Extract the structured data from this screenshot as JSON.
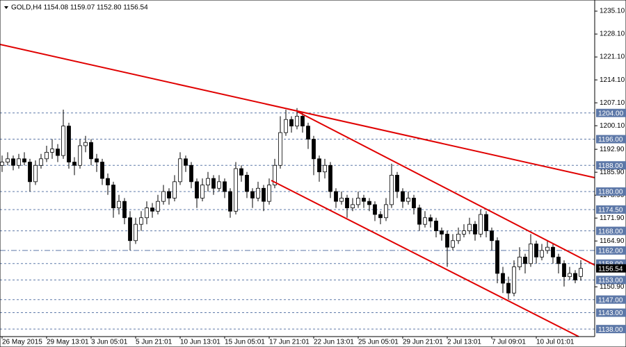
{
  "chart_data": {
    "type": "candlestick",
    "title": "GOLD,H4  1154.08 1159.07 1152.80 1156.54",
    "categories": [
      "26 May 2015",
      null,
      null,
      null,
      null,
      null,
      null,
      null,
      "29 May 13:01",
      null,
      null,
      null,
      null,
      null,
      null,
      null,
      "3 Jun 05:01",
      null,
      null,
      null,
      null,
      null,
      null,
      null,
      "5 Jun 21:01",
      null,
      null,
      null,
      null,
      null,
      null,
      null,
      "10 Jun 13:01",
      null,
      null,
      null,
      null,
      null,
      null,
      null,
      "15 Jun 05:01",
      null,
      null,
      null,
      null,
      null,
      null,
      null,
      "17 Jun 21:01",
      null,
      null,
      null,
      null,
      null,
      null,
      null,
      "22 Jun 13:01",
      null,
      null,
      null,
      null,
      null,
      null,
      null,
      "25 Jun 05:01",
      null,
      null,
      null,
      null,
      null,
      null,
      null,
      "29 Jun 21:01",
      null,
      null,
      null,
      null,
      null,
      null,
      null,
      "2 Jul 13:01",
      null,
      null,
      null,
      null,
      null,
      null,
      null,
      "7 Jul 09:01",
      null,
      null,
      null,
      null,
      null,
      null,
      null,
      "10 Jul 01:01",
      null,
      null,
      null,
      null,
      null,
      null,
      null,
      null
    ],
    "candles": [
      [
        1188,
        1191,
        1186,
        1189
      ],
      [
        1189,
        1192,
        1188,
        1190
      ],
      [
        1190,
        1191,
        1186.5,
        1188
      ],
      [
        1188,
        1191.5,
        1187,
        1190
      ],
      [
        1190,
        1192,
        1188,
        1189
      ],
      [
        1189,
        1190,
        1180,
        1183
      ],
      [
        1183,
        1189.5,
        1182,
        1188
      ],
      [
        1188,
        1191.5,
        1187,
        1190
      ],
      [
        1190,
        1194,
        1189,
        1192
      ],
      [
        1192,
        1196,
        1190,
        1193
      ],
      [
        1193,
        1194.5,
        1189,
        1191
      ],
      [
        1191,
        1205,
        1190,
        1200
      ],
      [
        1200,
        1201,
        1187,
        1189
      ],
      [
        1189,
        1190.5,
        1185,
        1188
      ],
      [
        1188,
        1196,
        1187,
        1194
      ],
      [
        1194,
        1197,
        1192,
        1195
      ],
      [
        1195,
        1196,
        1188,
        1190
      ],
      [
        1190,
        1191.5,
        1186,
        1189
      ],
      [
        1189,
        1190,
        1182,
        1184
      ],
      [
        1184,
        1185.5,
        1179,
        1182
      ],
      [
        1182,
        1183,
        1172,
        1175
      ],
      [
        1175,
        1179,
        1173,
        1177
      ],
      [
        1177,
        1178,
        1170,
        1172
      ],
      [
        1172,
        1174,
        1162,
        1165
      ],
      [
        1165,
        1172,
        1164,
        1170
      ],
      [
        1170,
        1174,
        1168,
        1172
      ],
      [
        1172,
        1177,
        1170,
        1175
      ],
      [
        1175,
        1176.5,
        1172,
        1174
      ],
      [
        1174,
        1179,
        1173,
        1177
      ],
      [
        1177,
        1182,
        1176,
        1180
      ],
      [
        1180,
        1181,
        1176,
        1178
      ],
      [
        1178,
        1185,
        1177,
        1183
      ],
      [
        1183,
        1192,
        1182,
        1190
      ],
      [
        1190,
        1191,
        1186,
        1188
      ],
      [
        1188,
        1189,
        1181,
        1183
      ],
      [
        1183,
        1184,
        1175,
        1178
      ],
      [
        1178,
        1184,
        1177,
        1182
      ],
      [
        1182,
        1186,
        1180,
        1184
      ],
      [
        1184,
        1185,
        1179,
        1181
      ],
      [
        1181,
        1185,
        1180,
        1183
      ],
      [
        1183,
        1184,
        1178,
        1180
      ],
      [
        1180,
        1181,
        1172,
        1174
      ],
      [
        1174,
        1189,
        1173,
        1187
      ],
      [
        1187,
        1188,
        1183,
        1185
      ],
      [
        1185,
        1186,
        1178,
        1180
      ],
      [
        1180,
        1181,
        1175,
        1178
      ],
      [
        1178,
        1183,
        1177,
        1181
      ],
      [
        1181,
        1182,
        1174,
        1177
      ],
      [
        1177,
        1184,
        1176,
        1182
      ],
      [
        1182,
        1190,
        1181,
        1188
      ],
      [
        1188,
        1203,
        1187,
        1198
      ],
      [
        1198,
        1205,
        1197,
        1202
      ],
      [
        1202,
        1203,
        1198,
        1200
      ],
      [
        1200,
        1205.5,
        1199,
        1203
      ],
      [
        1203,
        1204,
        1198,
        1200
      ],
      [
        1200,
        1201,
        1193,
        1196
      ],
      [
        1196,
        1197,
        1185,
        1190
      ],
      [
        1190,
        1191,
        1183,
        1186
      ],
      [
        1186,
        1190,
        1184,
        1188
      ],
      [
        1188,
        1189,
        1178,
        1180
      ],
      [
        1180,
        1181,
        1175,
        1177
      ],
      [
        1177,
        1180,
        1176,
        1178
      ],
      [
        1178,
        1179,
        1172,
        1175
      ],
      [
        1175,
        1178,
        1174,
        1176
      ],
      [
        1176,
        1180,
        1175,
        1178
      ],
      [
        1178,
        1179,
        1175,
        1177
      ],
      [
        1177,
        1178,
        1174,
        1176
      ],
      [
        1176,
        1177,
        1171,
        1173
      ],
      [
        1173,
        1174,
        1170,
        1172
      ],
      [
        1172,
        1178,
        1171,
        1176
      ],
      [
        1176,
        1188.5,
        1175,
        1185
      ],
      [
        1185,
        1186,
        1178,
        1180
      ],
      [
        1180,
        1181,
        1175,
        1177
      ],
      [
        1177,
        1180,
        1176,
        1178
      ],
      [
        1178,
        1179,
        1173,
        1175
      ],
      [
        1175,
        1176,
        1168,
        1170
      ],
      [
        1170,
        1174,
        1169,
        1172
      ],
      [
        1172,
        1173,
        1169,
        1171
      ],
      [
        1171,
        1172,
        1166,
        1168
      ],
      [
        1168,
        1169,
        1165,
        1167
      ],
      [
        1167,
        1168,
        1157,
        1163
      ],
      [
        1163,
        1167,
        1162,
        1165
      ],
      [
        1165,
        1169,
        1164,
        1167
      ],
      [
        1167,
        1170,
        1166,
        1168
      ],
      [
        1168,
        1172,
        1167,
        1170
      ],
      [
        1170,
        1171,
        1165,
        1167
      ],
      [
        1167,
        1174.5,
        1166,
        1173
      ],
      [
        1173,
        1174,
        1166,
        1168
      ],
      [
        1168,
        1169,
        1162,
        1165
      ],
      [
        1165,
        1166,
        1152,
        1155
      ],
      [
        1155,
        1157,
        1149,
        1152
      ],
      [
        1152,
        1154,
        1147,
        1149
      ],
      [
        1149,
        1159,
        1148,
        1157
      ],
      [
        1157,
        1163,
        1156,
        1160
      ],
      [
        1160,
        1161,
        1155,
        1158
      ],
      [
        1158,
        1167,
        1157,
        1164
      ],
      [
        1164,
        1165,
        1158,
        1160
      ],
      [
        1160,
        1164,
        1159,
        1162
      ],
      [
        1162,
        1165,
        1161,
        1163
      ],
      [
        1163,
        1164,
        1158,
        1160
      ],
      [
        1160,
        1161,
        1155,
        1158
      ],
      [
        1158,
        1159,
        1151,
        1154
      ],
      [
        1154,
        1157,
        1153,
        1155
      ],
      [
        1155,
        1156,
        1152,
        1153
      ],
      [
        1154.08,
        1159.07,
        1152.8,
        1156.54
      ]
    ],
    "bull_color": "#ffffff",
    "bear_color": "#000000",
    "ylim": [
      1135.7,
      1238.5
    ],
    "yticks": [
      {
        "value": 1235.1,
        "label": "1235.10"
      },
      {
        "value": 1228.1,
        "label": "1228.10"
      },
      {
        "value": 1221.1,
        "label": "1221.10"
      },
      {
        "value": 1214.1,
        "label": "1214.10"
      },
      {
        "value": 1207.1,
        "label": "1207.10"
      },
      {
        "value": 1200.1,
        "label": "1200.10"
      },
      {
        "value": 1192.9,
        "label": "1192.90"
      },
      {
        "value": 1185.9,
        "label": "1185.90"
      },
      {
        "value": 1178.9,
        "label": "1178.90"
      },
      {
        "value": 1171.9,
        "label": "1171.90"
      },
      {
        "value": 1164.9,
        "label": "1164.90"
      },
      {
        "value": 1150.9,
        "label": "1150.90"
      }
    ],
    "levels": [
      {
        "value": 1204,
        "label": "1204.00"
      },
      {
        "value": 1196,
        "label": "1196.00"
      },
      {
        "value": 1188,
        "label": "1188.00"
      },
      {
        "value": 1180,
        "label": "1180.00"
      },
      {
        "value": 1174.5,
        "label": "1174.50"
      },
      {
        "value": 1168,
        "label": "1168.00"
      },
      {
        "value": 1162,
        "label": "1162.00"
      },
      {
        "value": 1158,
        "label": "1158.00"
      },
      {
        "value": 1153,
        "label": "1153.00"
      },
      {
        "value": 1147,
        "label": "1147.00"
      },
      {
        "value": 1143,
        "label": "1143.00"
      },
      {
        "value": 1138,
        "label": "1138.00"
      }
    ],
    "level_color": "#5d78a8",
    "last_price": 1156.54
  }
}
